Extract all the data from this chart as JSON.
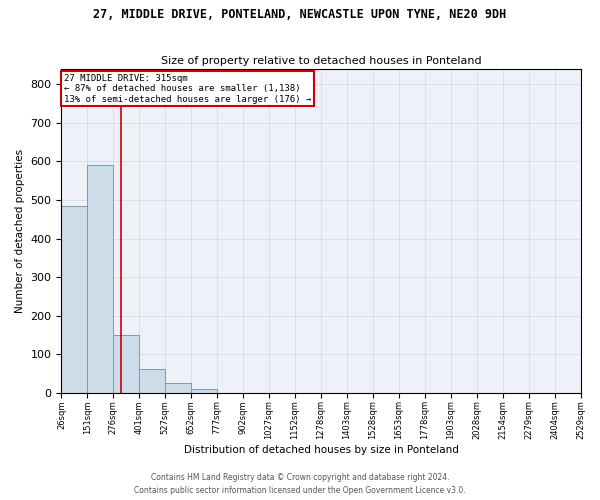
{
  "title1": "27, MIDDLE DRIVE, PONTELAND, NEWCASTLE UPON TYNE, NE20 9DH",
  "title2": "Size of property relative to detached houses in Ponteland",
  "xlabel": "Distribution of detached houses by size in Ponteland",
  "ylabel": "Number of detached properties",
  "bar_values": [
    485,
    590,
    150,
    62,
    25,
    8,
    0,
    0,
    0,
    0,
    0,
    0,
    0,
    0,
    0,
    0,
    0,
    0,
    0,
    0
  ],
  "bin_edges": [
    26,
    151,
    276,
    401,
    527,
    652,
    777,
    902,
    1027,
    1152,
    1278,
    1403,
    1528,
    1653,
    1778,
    1903,
    2028,
    2154,
    2279,
    2404,
    2529
  ],
  "bar_color": "#ccdce8",
  "bar_edge_color": "#7799bb",
  "grid_color": "#d0d8e0",
  "bg_color": "#eef2f8",
  "vline_x": 315,
  "vline_color": "#cc0000",
  "annotation_title": "27 MIDDLE DRIVE: 315sqm",
  "annotation_line1": "← 87% of detached houses are smaller (1,138)",
  "annotation_line2": "13% of semi-detached houses are larger (176) →",
  "annotation_box_color": "#cc0000",
  "ylim": [
    0,
    840
  ],
  "yticks": [
    0,
    100,
    200,
    300,
    400,
    500,
    600,
    700,
    800
  ],
  "footer1": "Contains HM Land Registry data © Crown copyright and database right 2024.",
  "footer2": "Contains public sector information licensed under the Open Government Licence v3.0."
}
